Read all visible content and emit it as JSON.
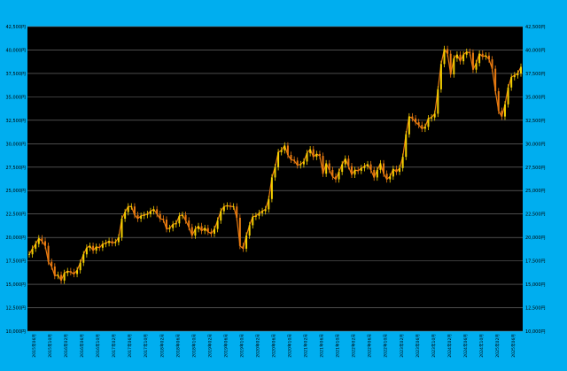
{
  "colors": {
    "frame": "#00AEEF",
    "plot_background": "#000000",
    "grid": "#7A7A7A",
    "axis_text": "#000000",
    "candle_up": "#F4D000",
    "candle_down": "#E87A10"
  },
  "chart_data": {
    "type": "line",
    "title": "",
    "xlabel": "",
    "ylabel": "",
    "ylim": [
      10000,
      42500
    ],
    "grid": true,
    "legend": "none",
    "y_ticks": [
      10000,
      12500,
      15000,
      17500,
      20000,
      22500,
      25000,
      27500,
      30000,
      32500,
      35000,
      37500,
      40000,
      42500
    ],
    "y_tick_labels": [
      "10,000円",
      "12,500円",
      "15,000円",
      "17,500円",
      "20,000円",
      "22,500円",
      "25,000円",
      "27,500円",
      "30,000円",
      "32,500円",
      "35,000円",
      "37,500円",
      "40,000円",
      "42,500円"
    ],
    "x_tick_labels": [
      "2015年06月",
      "2015年10月",
      "2016年02月",
      "2016年06月",
      "2016年10月",
      "2017年02月",
      "2017年06月",
      "2017年10月",
      "2018年02月",
      "2018年06月",
      "2018年10月",
      "2019年02月",
      "2019年06月",
      "2019年10月",
      "2020年02月",
      "2020年06月",
      "2020年10月",
      "2021年02月",
      "2021年06月",
      "2021年10月",
      "2022年02月",
      "2022年06月",
      "2022年10月",
      "2023年02月",
      "2023年06月",
      "2023年10月",
      "2024年02月",
      "2024年06月",
      "2024年10月",
      "2025年02月",
      "2025年06月"
    ],
    "x_tick_labels_visible": true,
    "series": [
      {
        "values": [
          18200,
          18800,
          19300,
          19900,
          19600,
          19100,
          17400,
          16900,
          15900,
          16000,
          15400,
          16200,
          16400,
          16300,
          16100,
          16500,
          17300,
          18200,
          18900,
          19100,
          18600,
          19000,
          18900,
          19300,
          19400,
          19600,
          19400,
          19500,
          20000,
          22000,
          22700,
          23300,
          23300,
          22400,
          22000,
          22300,
          22400,
          22500,
          22800,
          23000,
          22500,
          22000,
          21900,
          20900,
          21000,
          21400,
          21500,
          22300,
          22400,
          21800,
          21100,
          20200,
          20900,
          21200,
          20700,
          21000,
          20600,
          20400,
          20900,
          21800,
          22800,
          23300,
          23400,
          23300,
          23300,
          22100,
          19100,
          18800,
          20200,
          21300,
          22200,
          22300,
          22600,
          22800,
          23000,
          24100,
          26400,
          27500,
          29100,
          29300,
          29800,
          28800,
          28300,
          28200,
          27700,
          27800,
          28100,
          29000,
          29400,
          28600,
          28900,
          28700,
          26800,
          27900,
          27200,
          26500,
          26200,
          27000,
          27800,
          28400,
          27600,
          26700,
          27200,
          27100,
          27400,
          27600,
          27800,
          27200,
          26400,
          27200,
          27900,
          26800,
          26200,
          26500,
          27300,
          27000,
          27400,
          28600,
          31000,
          32900,
          32700,
          32300,
          32000,
          31600,
          31800,
          32700,
          32800,
          33200,
          35800,
          38500,
          40100,
          39600,
          37400,
          39100,
          39500,
          38800,
          39500,
          39800,
          39700,
          37900,
          38600,
          39600,
          39300,
          39400,
          39000,
          38000,
          35600,
          33500,
          32900,
          34200,
          36000,
          37100,
          37300,
          37500,
          38200
        ]
      }
    ]
  }
}
